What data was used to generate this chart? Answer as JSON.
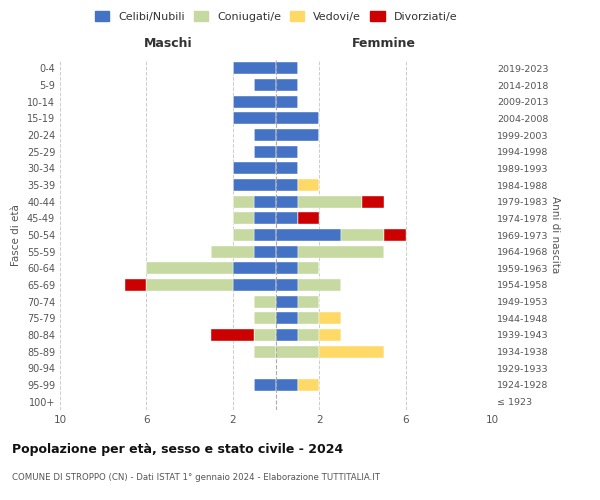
{
  "age_groups": [
    "100+",
    "95-99",
    "90-94",
    "85-89",
    "80-84",
    "75-79",
    "70-74",
    "65-69",
    "60-64",
    "55-59",
    "50-54",
    "45-49",
    "40-44",
    "35-39",
    "30-34",
    "25-29",
    "20-24",
    "15-19",
    "10-14",
    "5-9",
    "0-4"
  ],
  "birth_years": [
    "≤ 1923",
    "1924-1928",
    "1929-1933",
    "1934-1938",
    "1939-1943",
    "1944-1948",
    "1949-1953",
    "1954-1958",
    "1959-1963",
    "1964-1968",
    "1969-1973",
    "1974-1978",
    "1979-1983",
    "1984-1988",
    "1989-1993",
    "1994-1998",
    "1999-2003",
    "2004-2008",
    "2009-2013",
    "2014-2018",
    "2019-2023"
  ],
  "colors": {
    "celibi": "#4472C4",
    "coniugati": "#C5D9A0",
    "vedovi": "#FFD966",
    "divorziati": "#CC0000"
  },
  "maschi": {
    "celibi": [
      0,
      1,
      0,
      0,
      0,
      0,
      0,
      2,
      2,
      1,
      1,
      1,
      1,
      2,
      2,
      1,
      1,
      2,
      2,
      1,
      2
    ],
    "coniugati": [
      0,
      0,
      0,
      1,
      1,
      1,
      1,
      4,
      4,
      2,
      1,
      1,
      1,
      0,
      0,
      0,
      0,
      0,
      0,
      0,
      0
    ],
    "vedovi": [
      0,
      0,
      0,
      0,
      0,
      0,
      0,
      0,
      0,
      0,
      0,
      0,
      0,
      0,
      0,
      0,
      0,
      0,
      0,
      0,
      0
    ],
    "divorziati": [
      0,
      0,
      0,
      0,
      2,
      0,
      0,
      1,
      0,
      0,
      0,
      0,
      0,
      0,
      0,
      0,
      0,
      0,
      0,
      0,
      0
    ]
  },
  "femmine": {
    "celibi": [
      0,
      1,
      0,
      0,
      1,
      1,
      1,
      1,
      1,
      1,
      3,
      1,
      1,
      1,
      1,
      1,
      2,
      2,
      1,
      1,
      1
    ],
    "coniugati": [
      0,
      0,
      0,
      2,
      1,
      1,
      1,
      2,
      1,
      4,
      2,
      0,
      3,
      0,
      0,
      0,
      0,
      0,
      0,
      0,
      0
    ],
    "vedovi": [
      0,
      1,
      0,
      3,
      1,
      1,
      0,
      0,
      0,
      0,
      0,
      0,
      0,
      1,
      0,
      0,
      0,
      0,
      0,
      0,
      0
    ],
    "divorziati": [
      0,
      0,
      0,
      0,
      0,
      0,
      0,
      0,
      0,
      0,
      1,
      1,
      1,
      0,
      0,
      0,
      0,
      0,
      0,
      0,
      0
    ]
  },
  "xlim": 10,
  "title": "Popolazione per età, sesso e stato civile - 2024",
  "subtitle": "COMUNE DI STROPPO (CN) - Dati ISTAT 1° gennaio 2024 - Elaborazione TUTTITALIA.IT",
  "ylabel_left": "Fasce di età",
  "ylabel_right": "Anni di nascita",
  "xlabel_maschi": "Maschi",
  "xlabel_femmine": "Femmine",
  "legend_labels": [
    "Celibi/Nubili",
    "Coniugati/e",
    "Vedovi/e",
    "Divorziati/e"
  ],
  "bg_color": "#ffffff",
  "grid_color": "#cccccc"
}
